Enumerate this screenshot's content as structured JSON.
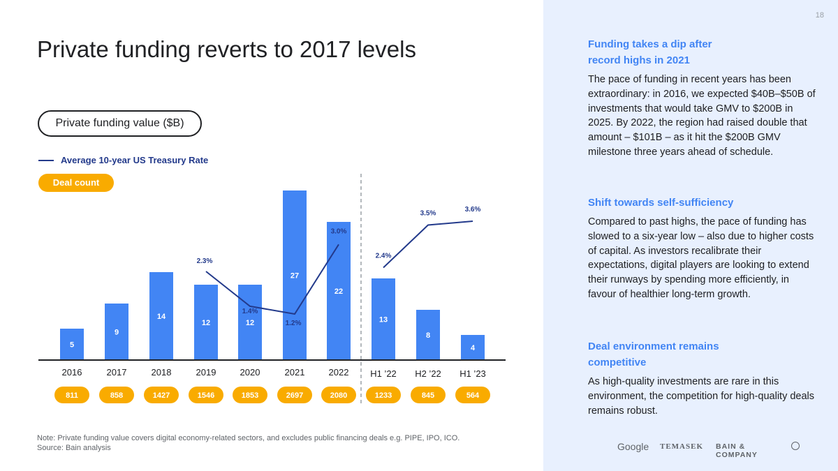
{
  "page": {
    "title": "Private funding reverts to 2017 levels",
    "page_number": "18",
    "note_line1": "Note: Private funding value covers digital economy-related sectors, and excludes public financing deals e.g. PIPE, IPO, ICO.",
    "note_line2": "Source: Bain analysis"
  },
  "legend": {
    "funding_value": "Private funding value ($B)",
    "treasury_rate": "Average 10-year US Treasury Rate",
    "deal_count": "Deal count"
  },
  "colors": {
    "bar": "#4285f4",
    "line": "#233a8b",
    "deal_pill": "#f9ab00",
    "heading": "#4285f4",
    "panel": "#e8f0fe"
  },
  "chart_data": {
    "type": "bar",
    "title": "Private funding value ($B)",
    "categories": [
      "2016",
      "2017",
      "2018",
      "2019",
      "2020",
      "2021",
      "2022",
      "H1 ’22",
      "H2 ’22",
      "H1 ’23"
    ],
    "values": [
      5,
      9,
      14,
      12,
      12,
      27,
      22,
      13,
      8,
      4
    ],
    "ylim": [
      0,
      27
    ],
    "deal_counts": [
      "811",
      "858",
      "1427",
      "1546",
      "1853",
      "2697",
      "2080",
      "1233",
      "845",
      "564"
    ],
    "treasury_rate": [
      {
        "category_index": 3,
        "value": 2.3,
        "label": "2.3%"
      },
      {
        "category_index": 4,
        "value": 1.4,
        "label": "1.4%"
      },
      {
        "category_index": 5,
        "value": 1.2,
        "label": "1.2%"
      },
      {
        "category_index": 6,
        "value": 3.0,
        "label": "3.0%"
      },
      {
        "category_index": 7,
        "value": 2.4,
        "label": "2.4%"
      },
      {
        "category_index": 8,
        "value": 3.5,
        "label": "3.5%"
      },
      {
        "category_index": 9,
        "value": 3.6,
        "label": "3.6%"
      }
    ],
    "divider_after_index": 6,
    "grid": false
  },
  "sidebar": {
    "sections": [
      {
        "heading_line1": "Funding takes a dip after",
        "heading_line2": "record highs in 2021",
        "body": "The pace of funding in recent years has been extraordinary: in 2016, we expected $40B–$50B of investments that would take GMV to $200B in 2025. By 2022, the region had raised double that amount – $101B – as it hit the $200B GMV milestone three years ahead of schedule."
      },
      {
        "heading_line1": "Shift towards self-sufficiency",
        "heading_line2": "",
        "body": "Compared to past highs, the pace of funding has slowed to a six-year low – also due to higher costs of capital. As investors recalibrate their expectations, digital players are looking to extend their runways by spending more efficiently, in favour of healthier long-term growth."
      },
      {
        "heading_line1": "Deal environment remains",
        "heading_line2": "competitive",
        "body": "As high-quality investments are rare in this environment, the competition for high-quality deals remains robust."
      }
    ]
  },
  "logos": {
    "google": "Google",
    "temasek": "TEMASEK",
    "bain": "BAIN & COMPANY"
  }
}
